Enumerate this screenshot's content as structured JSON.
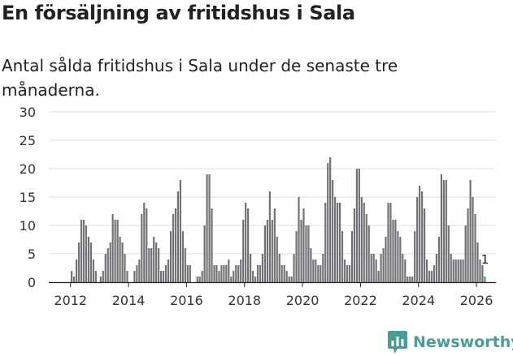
{
  "title": "En försäljning av fritidshus i Sala",
  "subtitle": "Antal sålda fritidshus i Sala under de senaste tre månaderna.",
  "brand": {
    "name": "Newsworthy",
    "icon": "chart-bubble-icon"
  },
  "colors": {
    "bar": "#717075",
    "highlight": "#3a9b94",
    "grid": "#dddddd",
    "axis": "#222222",
    "brand": "#4a9d95"
  },
  "chart_data": {
    "type": "bar",
    "title": "En försäljning av fritidshus i Sala",
    "xlabel": "",
    "ylabel": "",
    "ylim": [
      0,
      30
    ],
    "y_ticks": [
      0,
      5,
      10,
      15,
      20,
      25,
      30
    ],
    "x_range": [
      2011.25,
      2026.67
    ],
    "x_ticks": [
      {
        "value": 2012,
        "label": "2012"
      },
      {
        "value": 2014,
        "label": "2014"
      },
      {
        "value": 2016,
        "label": "2016"
      },
      {
        "value": 2018,
        "label": "2018"
      },
      {
        "value": 2020,
        "label": "2020"
      },
      {
        "value": 2022,
        "label": "2022"
      },
      {
        "value": 2024,
        "label": "2024"
      },
      {
        "value": 2026,
        "label": "2026"
      }
    ],
    "start": {
      "year": 2011,
      "month": 4
    },
    "interval": "monthly",
    "values": [
      0,
      0,
      0,
      0,
      0,
      0,
      0,
      0,
      0,
      2,
      1,
      4,
      7,
      11,
      11,
      10,
      8,
      7,
      4,
      2,
      0,
      1,
      2,
      5,
      6,
      7,
      12,
      11,
      11,
      8,
      7,
      5,
      2,
      0,
      0,
      2,
      3,
      4,
      12,
      14,
      13,
      6,
      6,
      8,
      7,
      6,
      2,
      2,
      3,
      4,
      9,
      12,
      13,
      16,
      18,
      9,
      6,
      3,
      3,
      0,
      0,
      1,
      1,
      2,
      10,
      19,
      19,
      13,
      3,
      3,
      2,
      3,
      3,
      3,
      4,
      1,
      2,
      3,
      3,
      4,
      11,
      14,
      13,
      5,
      2,
      1,
      3,
      3,
      5,
      10,
      11,
      16,
      11,
      13,
      8,
      5,
      3,
      3,
      2,
      1,
      1,
      5,
      9,
      15,
      11,
      13,
      10,
      10,
      6,
      4,
      4,
      3,
      3,
      5,
      14,
      21,
      22,
      18,
      15,
      14,
      14,
      9,
      4,
      3,
      3,
      9,
      13,
      20,
      20,
      15,
      14,
      12,
      10,
      5,
      5,
      4,
      2,
      5,
      6,
      8,
      14,
      14,
      11,
      11,
      9,
      8,
      5,
      4,
      1,
      1,
      1,
      9,
      15,
      17,
      16,
      13,
      4,
      2,
      2,
      3,
      5,
      8,
      19,
      18,
      18,
      10,
      5,
      4,
      4,
      4,
      4,
      4,
      10,
      13,
      18,
      15,
      12,
      7,
      4,
      3,
      1
    ],
    "last_label": "1"
  }
}
